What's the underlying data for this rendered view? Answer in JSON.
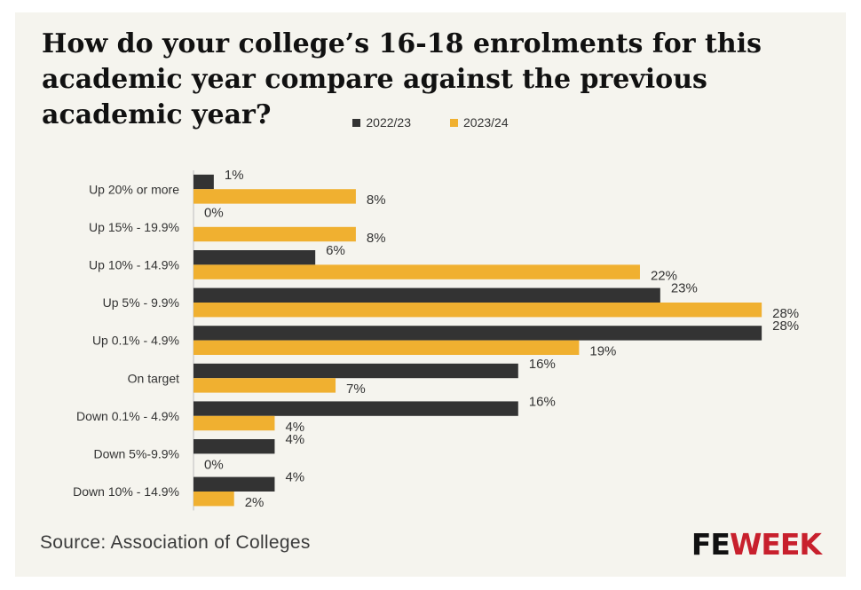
{
  "chart_data": {
    "type": "bar",
    "orientation": "horizontal",
    "title": "How do your college’s 16-18 enrolments for this academic year compare against the previous academic year?",
    "categories": [
      "Up 20% or more",
      "Up 15% - 19.9%",
      "Up 10% - 14.9%",
      "Up 5% - 9.9%",
      "Up 0.1% - 4.9%",
      "On target",
      "Down 0.1% - 4.9%",
      "Down 5%-9.9%",
      "Down 10% - 14.9%"
    ],
    "series": [
      {
        "name": "2022/23",
        "color": "#333333",
        "values": [
          1,
          0,
          6,
          23,
          28,
          16,
          16,
          4,
          4
        ]
      },
      {
        "name": "2023/24",
        "color": "#f0b030",
        "values": [
          8,
          8,
          22,
          28,
          19,
          7,
          4,
          0,
          2
        ]
      }
    ],
    "value_suffix": "%",
    "xlim": [
      0,
      29
    ],
    "grid": false,
    "legend_position": "top-center"
  },
  "footer": {
    "source": "Source: Association of Colleges",
    "logo_fe": "FE",
    "logo_week": "WEEK"
  }
}
